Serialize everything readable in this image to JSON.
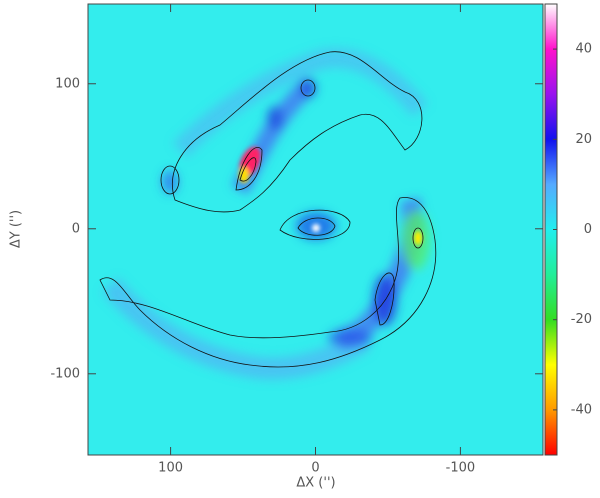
{
  "chart_data": {
    "type": "heatmap",
    "xlabel": "ΔX ('')",
    "ylabel": "ΔY ('')",
    "xlim": [
      157,
      -157
    ],
    "ylim": [
      -156,
      155
    ],
    "xticks": [
      100,
      0,
      -100
    ],
    "yticks": [
      100,
      0,
      -100
    ],
    "background": "#33eded",
    "colorbar": {
      "lim": [
        -50,
        50
      ],
      "ticks": [
        40,
        20,
        0,
        -20,
        -40
      ],
      "colors": [
        "#ff0000",
        "#ff9900",
        "#ffff00",
        "#33dd22",
        "#22ee99",
        "#22eeee",
        "#55aaff",
        "#1111ee",
        "#9911ee",
        "#ff11cc",
        "#ffffff"
      ]
    }
  }
}
